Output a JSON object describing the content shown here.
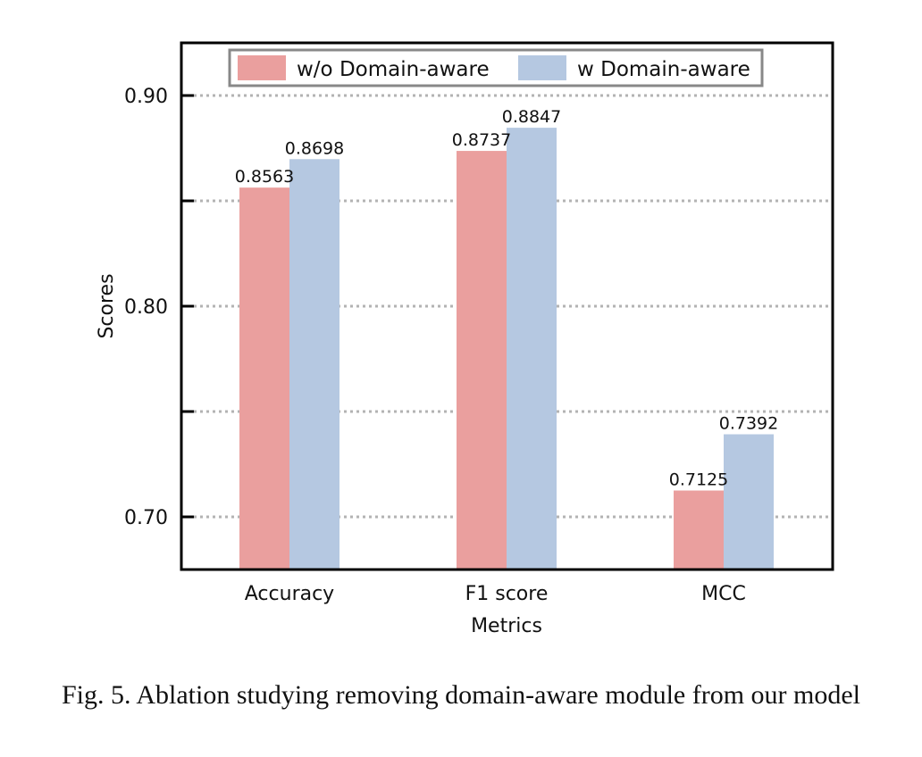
{
  "chart_data": {
    "type": "bar",
    "categories": [
      "Accuracy",
      "F1 score",
      "MCC"
    ],
    "series": [
      {
        "name": "w/o Domain-aware",
        "values": [
          0.8563,
          0.8737,
          0.7125
        ],
        "color": "#ea9f9e"
      },
      {
        "name": "w Domain-aware",
        "values": [
          0.8698,
          0.8847,
          0.7392
        ],
        "color": "#b5c8e1"
      }
    ],
    "data_labels": [
      [
        "0.8563",
        "0.8737",
        "0.7125"
      ],
      [
        "0.8698",
        "0.8847",
        "0.7392"
      ]
    ],
    "xlabel": "Metrics",
    "ylabel": "Scores",
    "ylim": [
      0.675,
      0.925
    ],
    "yticks": [
      0.7,
      0.75,
      0.8,
      0.85,
      0.9
    ],
    "ytick_labels": [
      "0.70",
      "",
      "0.80",
      "",
      "0.90"
    ],
    "grid": "horizontal dotted",
    "legend_position": "top-center"
  },
  "caption": "Fig. 5.  Ablation studying removing domain-aware module from our model"
}
